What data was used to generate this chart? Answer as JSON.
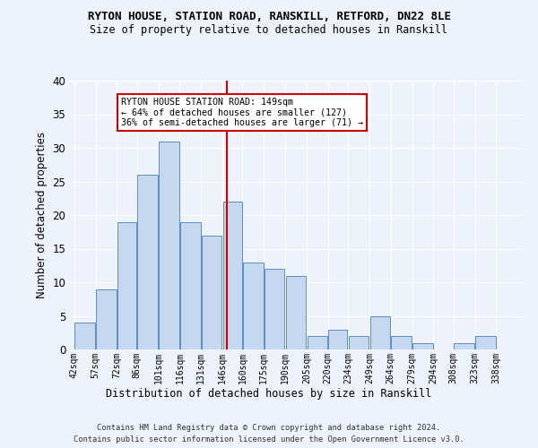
{
  "title1": "RYTON HOUSE, STATION ROAD, RANSKILL, RETFORD, DN22 8LE",
  "title2": "Size of property relative to detached houses in Ranskill",
  "xlabel": "Distribution of detached houses by size in Ranskill",
  "ylabel": "Number of detached properties",
  "bin_labels": [
    "42sqm",
    "57sqm",
    "72sqm",
    "86sqm",
    "101sqm",
    "116sqm",
    "131sqm",
    "146sqm",
    "160sqm",
    "175sqm",
    "190sqm",
    "205sqm",
    "220sqm",
    "234sqm",
    "249sqm",
    "264sqm",
    "279sqm",
    "294sqm",
    "308sqm",
    "323sqm",
    "338sqm"
  ],
  "values": [
    4,
    9,
    19,
    26,
    31,
    19,
    17,
    22,
    13,
    12,
    11,
    2,
    3,
    2,
    5,
    2,
    1,
    0,
    1,
    2,
    0
  ],
  "bar_color": "#c5d8f0",
  "bar_edge_color": "#5a8fc0",
  "marker_value": 149,
  "bin_edges": [
    42,
    57,
    72,
    86,
    101,
    116,
    131,
    146,
    160,
    175,
    190,
    205,
    220,
    234,
    249,
    264,
    279,
    294,
    308,
    323,
    338,
    353
  ],
  "annotation_lines": [
    "RYTON HOUSE STATION ROAD: 149sqm",
    "← 64% of detached houses are smaller (127)",
    "36% of semi-detached houses are larger (71) →"
  ],
  "ylim": [
    0,
    40
  ],
  "yticks": [
    0,
    5,
    10,
    15,
    20,
    25,
    30,
    35,
    40
  ],
  "footer1": "Contains HM Land Registry data © Crown copyright and database right 2024.",
  "footer2": "Contains public sector information licensed under the Open Government Licence v3.0.",
  "background_color": "#eef2fa",
  "grid_color": "#ffffff",
  "annotation_box_color": "#ffffff",
  "annotation_box_edge": "#cc0000",
  "vline_color": "#cc0000"
}
